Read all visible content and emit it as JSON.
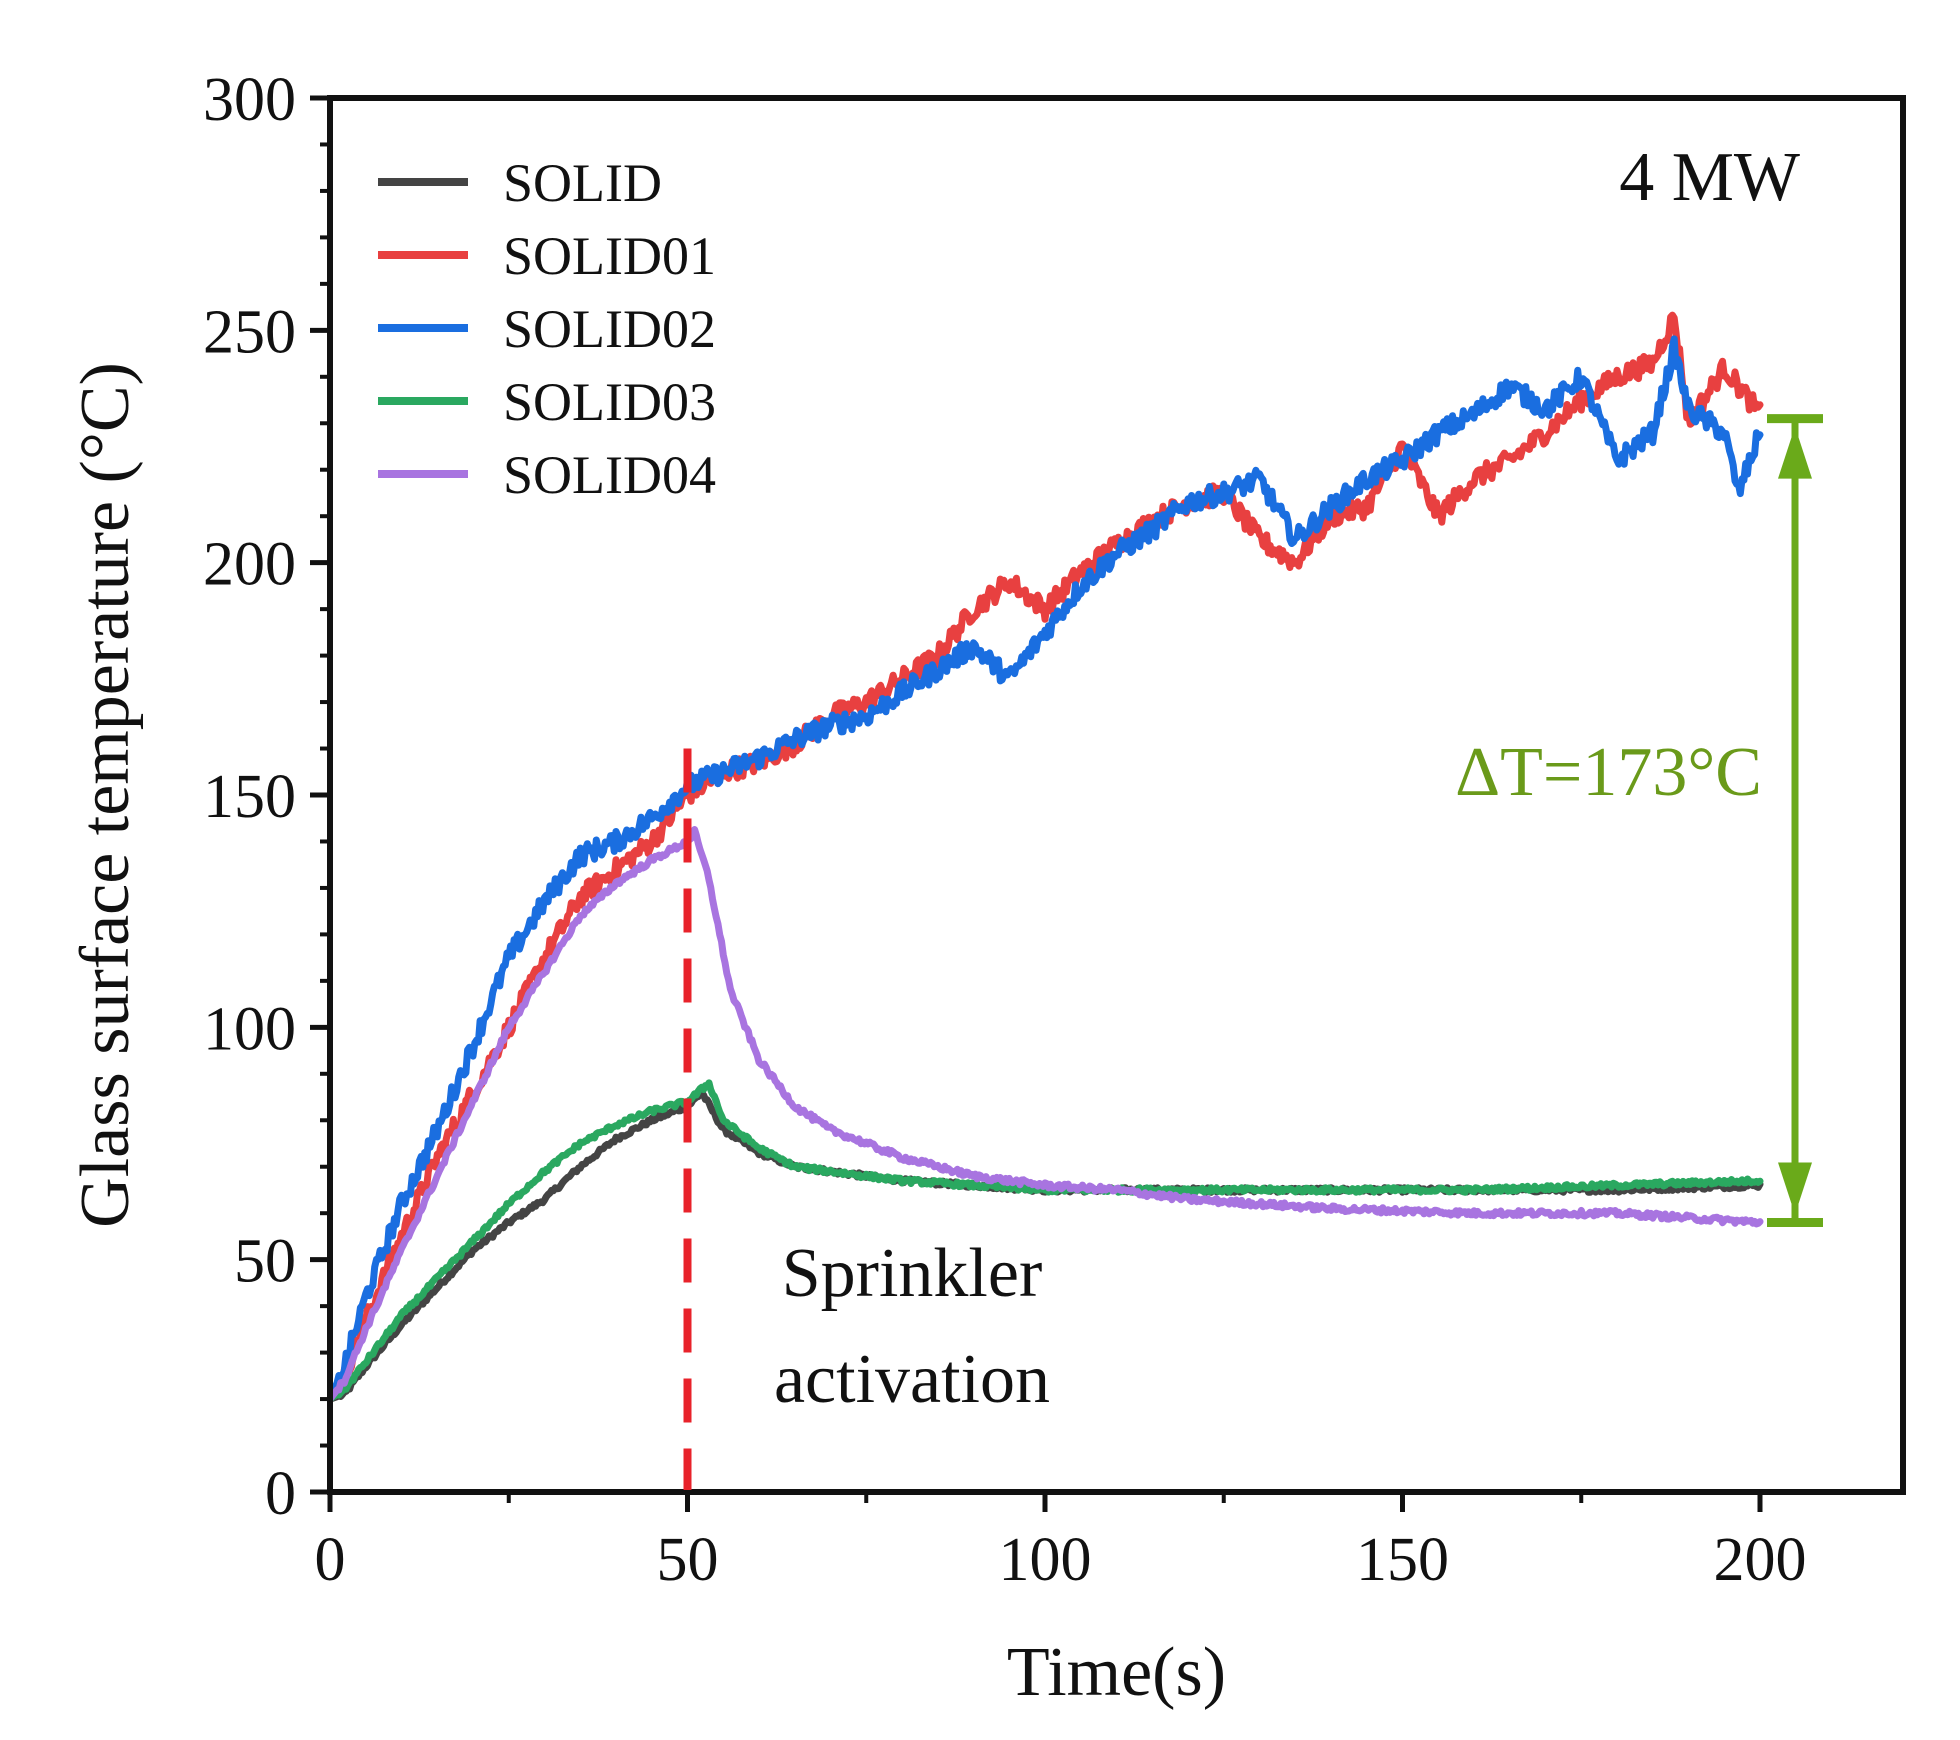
{
  "chart_data": {
    "type": "line",
    "title": "",
    "xlabel": "Time(s)",
    "ylabel": "Glass surface temperature (°C)",
    "xlim": [
      0,
      220
    ],
    "ylim": [
      0,
      300
    ],
    "xticks": [
      0,
      50,
      100,
      150,
      200
    ],
    "yticks": [
      0,
      50,
      100,
      150,
      200,
      250,
      300
    ],
    "grid": false,
    "legend_position": "top-left",
    "annotations": {
      "power": "4 MW",
      "sprinkler_line1": "Sprinkler",
      "sprinkler_line2": "activation",
      "sprinkler_time": 50,
      "delta": "ΔT=173°C",
      "delta_from": 58,
      "delta_to": 231
    },
    "colors": {
      "sprinkler_line": "#e8222a",
      "delta_arrow": "#6aaa1a",
      "delta_text": "#6a9a1a"
    },
    "series": [
      {
        "name": "SOLID",
        "color": "#444444",
        "x": [
          0,
          2,
          5,
          10,
          15,
          20,
          25,
          30,
          35,
          40,
          45,
          50,
          52,
          55,
          60,
          65,
          70,
          80,
          90,
          100,
          120,
          140,
          160,
          180,
          200
        ],
        "y": [
          20,
          21,
          27,
          36,
          44,
          52,
          58,
          63,
          70,
          76,
          80,
          83,
          86,
          78,
          73,
          70,
          69,
          67,
          66,
          65,
          65,
          65,
          65,
          65,
          66
        ]
      },
      {
        "name": "SOLID01",
        "color": "#e84040",
        "x": [
          0,
          2,
          5,
          10,
          15,
          20,
          25,
          30,
          35,
          40,
          45,
          50,
          55,
          60,
          65,
          70,
          75,
          80,
          85,
          90,
          95,
          100,
          105,
          110,
          115,
          120,
          125,
          130,
          135,
          140,
          145,
          150,
          155,
          160,
          165,
          170,
          175,
          180,
          185,
          188,
          190,
          195,
          200
        ],
        "y": [
          20,
          25,
          37,
          55,
          72,
          86,
          100,
          115,
          128,
          134,
          140,
          150,
          155,
          157,
          161,
          167,
          170,
          175,
          180,
          190,
          196,
          190,
          198,
          204,
          209,
          213,
          215,
          205,
          200,
          210,
          212,
          225,
          210,
          218,
          222,
          228,
          235,
          240,
          243,
          253,
          230,
          242,
          232
        ]
      },
      {
        "name": "SOLID02",
        "color": "#1a6ee0",
        "x": [
          0,
          2,
          5,
          10,
          15,
          20,
          25,
          30,
          35,
          40,
          45,
          50,
          55,
          60,
          65,
          70,
          75,
          80,
          85,
          90,
          95,
          100,
          105,
          110,
          115,
          120,
          125,
          130,
          135,
          140,
          145,
          150,
          155,
          160,
          165,
          170,
          175,
          180,
          185,
          188,
          190,
          195,
          197,
          200
        ],
        "y": [
          20,
          27,
          42,
          62,
          78,
          96,
          115,
          127,
          137,
          140,
          145,
          152,
          155,
          158,
          162,
          165,
          167,
          172,
          177,
          182,
          175,
          185,
          195,
          202,
          207,
          213,
          215,
          218,
          205,
          212,
          218,
          222,
          228,
          232,
          238,
          233,
          240,
          222,
          228,
          246,
          233,
          228,
          215,
          228
        ]
      },
      {
        "name": "SOLID03",
        "color": "#2aa860",
        "x": [
          0,
          2,
          5,
          10,
          15,
          20,
          25,
          30,
          35,
          40,
          45,
          50,
          53,
          55,
          60,
          65,
          70,
          80,
          90,
          100,
          120,
          140,
          160,
          180,
          200
        ],
        "y": [
          20,
          22,
          28,
          38,
          46,
          54,
          62,
          69,
          75,
          79,
          82,
          84,
          88,
          80,
          74,
          70,
          69,
          67,
          66,
          65,
          65,
          65,
          65,
          66,
          67
        ]
      },
      {
        "name": "SOLID04",
        "color": "#a874e0",
        "x": [
          0,
          2,
          5,
          10,
          15,
          20,
          25,
          30,
          35,
          40,
          45,
          50,
          51,
          53,
          56,
          60,
          65,
          70,
          80,
          90,
          100,
          110,
          120,
          140,
          160,
          180,
          200
        ],
        "y": [
          20,
          24,
          35,
          52,
          68,
          84,
          100,
          112,
          124,
          131,
          136,
          140,
          142,
          132,
          108,
          93,
          83,
          78,
          72,
          68,
          66,
          65,
          63,
          61,
          60,
          60,
          58
        ]
      }
    ]
  }
}
